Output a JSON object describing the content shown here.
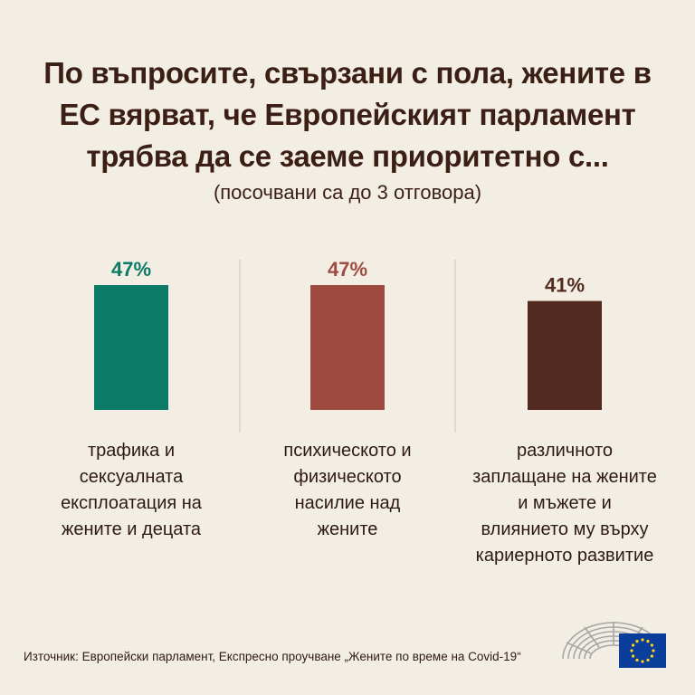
{
  "title_lines": [
    "По въпросите, свързани с пола, жените в",
    "ЕС вярват, че Европейският парламент",
    "трябва да се заеме приоритетно с..."
  ],
  "subtitle": "(посочвани са до 3 отговора)",
  "source": "Източник: Европейски парламент, Експресно проучване „Жените по време на Covid-19“",
  "chart_data": {
    "type": "bar",
    "categories": [
      "трафика и сексуалната експлоатация на жените и децата",
      "психическото и физическото насилие над жените",
      "различното заплащане на жените и мъжете и влиянието му върху кариерното развитие"
    ],
    "category_lines": [
      [
        "трафика и",
        "сексуалната",
        "експлоатация на",
        "жените и децата"
      ],
      [
        "психическото и",
        "физическото",
        "насилие над",
        "жените"
      ],
      [
        "различното",
        "заплащане на жените",
        "и мъжете и",
        "влиянието му върху",
        "кариерното развитие"
      ]
    ],
    "values": [
      47,
      47,
      41
    ],
    "data_labels": [
      "47%",
      "47%",
      "41%"
    ],
    "colors": [
      "#0b7a66",
      "#a04b41",
      "#522a20"
    ],
    "unit": "%",
    "ylim": [
      0,
      100
    ],
    "grid": false
  }
}
